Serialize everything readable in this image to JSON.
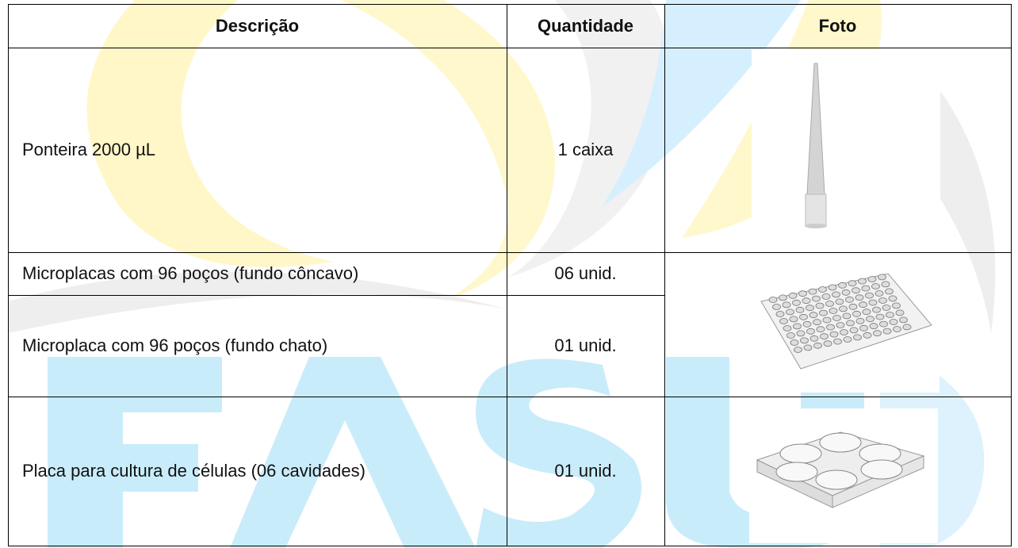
{
  "table": {
    "headers": [
      "Descrição",
      "Quantidade",
      "Foto"
    ],
    "rows": [
      {
        "description": "Ponteira 2000 µL",
        "quantity": "1 caixa"
      },
      {
        "description": "Microplacas com 96 poços (fundo côncavo)",
        "quantity": "06 unid."
      },
      {
        "description": "Microplaca com 96 poços (fundo chato)",
        "quantity": "01 unid."
      },
      {
        "description": "Placa para cultura de células (06 cavidades)",
        "quantity": "01 unid."
      }
    ]
  }
}
